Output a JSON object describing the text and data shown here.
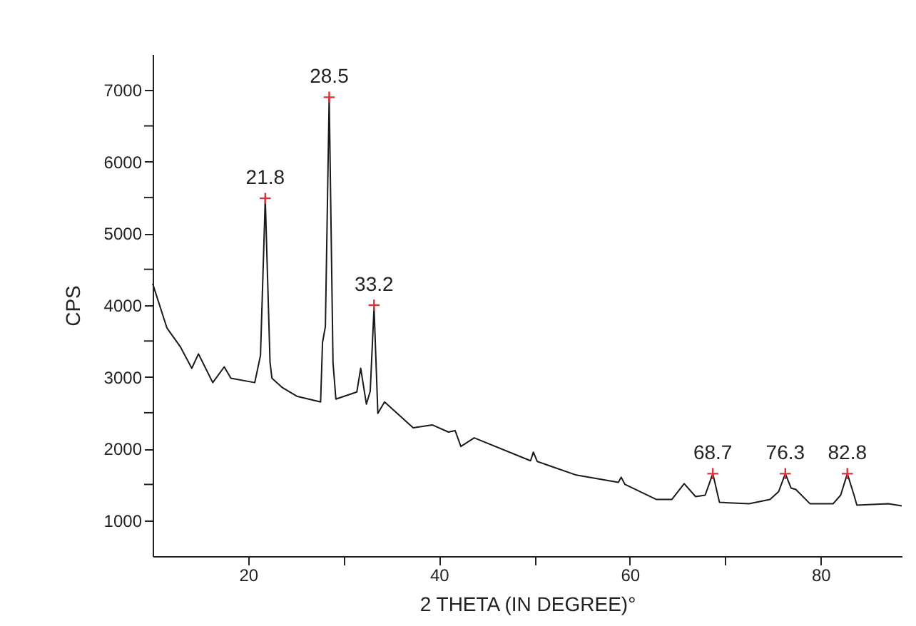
{
  "chart_data": {
    "type": "line",
    "xlabel": "2 THETA (IN DEGREE)°",
    "ylabel": "CPS",
    "xlim": [
      10,
      88.5
    ],
    "ylim": [
      500,
      7500
    ],
    "xticks": [
      20,
      {
        "value": 30,
        "label": null
      },
      40,
      {
        "value": 50,
        "label": null
      },
      60,
      {
        "value": 70,
        "label": null
      },
      80
    ],
    "yticks": [
      1000,
      {
        "value": 1500,
        "label": null
      },
      2000,
      {
        "value": 2500,
        "label": null
      },
      3000,
      {
        "value": 3500,
        "label": null
      },
      4000,
      {
        "value": 4500,
        "label": null
      },
      5000,
      {
        "value": 5500,
        "label": null
      },
      6000,
      {
        "value": 6500,
        "label": null
      },
      7000
    ],
    "grid": false,
    "series": [
      {
        "type": "line",
        "color": "#1a1a1a",
        "marker": "none",
        "line_style": "solid",
        "x": [
          10,
          11.5,
          12.9,
          14.1,
          14.8,
          16.3,
          17.5,
          18.2,
          20.7,
          21.3,
          21.8,
          22.3,
          22.5,
          23.6,
          25.1,
          27.6,
          27.8,
          28.1,
          28.5,
          28.9,
          29.2,
          31.4,
          31.8,
          32.4,
          32.8,
          33.2,
          33.6,
          34.3,
          37.3,
          39.3,
          41,
          41.7,
          42.3,
          43.7,
          49.6,
          49.9,
          50.3,
          54.4,
          58.8,
          59.1,
          59.5,
          62.8,
          64.4,
          65.7,
          66.9,
          67.9,
          68.7,
          69.4,
          72.5,
          74.7,
          75.6,
          76.3,
          76.9,
          77.4,
          78.9,
          81.3,
          82.1,
          82.8,
          83.5,
          83.8,
          87.1,
          88.5
        ],
        "values": [
          4300,
          3680,
          3420,
          3120,
          3320,
          2920,
          3140,
          2980,
          2920,
          3300,
          5480,
          3200,
          2980,
          2850,
          2730,
          2650,
          3480,
          3700,
          6900,
          3200,
          2690,
          2790,
          3120,
          2620,
          2800,
          3970,
          2490,
          2650,
          2290,
          2330,
          2230,
          2250,
          2030,
          2150,
          1830,
          1950,
          1820,
          1630,
          1530,
          1600,
          1500,
          1290,
          1290,
          1510,
          1330,
          1350,
          1650,
          1250,
          1230,
          1290,
          1400,
          1650,
          1450,
          1430,
          1230,
          1230,
          1350,
          1650,
          1350,
          1210,
          1230,
          1200
        ]
      },
      {
        "type": "scatter",
        "color": "#e0303a",
        "marker": "cross",
        "x": [
          21.8,
          28.5,
          33.2,
          68.7,
          76.3,
          82.8
        ],
        "values": [
          5490,
          6900,
          4000,
          1650,
          1650,
          1650
        ]
      }
    ],
    "annotations": [
      {
        "text": "21.8",
        "x": 21.8,
        "y": 5490
      },
      {
        "text": "28.5",
        "x": 28.5,
        "y": 6900
      },
      {
        "text": "33.2",
        "x": 33.2,
        "y": 4000
      },
      {
        "text": "68.7",
        "x": 68.7,
        "y": 1650
      },
      {
        "text": "76.3",
        "x": 76.3,
        "y": 1650
      },
      {
        "text": "82.8",
        "x": 82.8,
        "y": 1650
      }
    ]
  }
}
